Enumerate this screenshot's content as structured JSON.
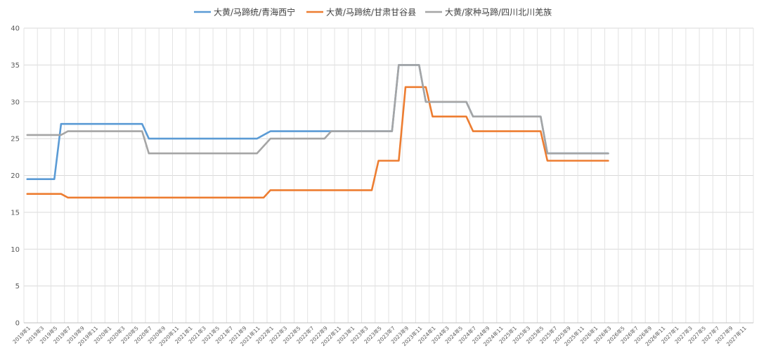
{
  "chart_data": {
    "type": "line",
    "title": "",
    "xlabel": "",
    "ylabel": "",
    "ylim": [
      0,
      40
    ],
    "yticks": [
      "0",
      "5",
      "10",
      "15",
      "20",
      "25",
      "30",
      "35",
      "40"
    ],
    "grid": true,
    "legend_position": "top-center",
    "categories": [
      "2019年1",
      "2019年3",
      "2019年5",
      "2019年7",
      "2019年9",
      "2019年11",
      "2020年1",
      "2020年3",
      "2020年5",
      "2020年7",
      "2020年9",
      "2020年11",
      "2021年1",
      "2021年3",
      "2021年5",
      "2021年7",
      "2021年9",
      "2021年11",
      "2022年1",
      "2022年3",
      "2022年5",
      "2022年7",
      "2022年9",
      "2022年11",
      "2023年1",
      "2023年3",
      "2023年5",
      "2023年7",
      "2023年9",
      "2023年11",
      "2024年1",
      "2024年3",
      "2024年5",
      "2024年7",
      "2024年9",
      "2024年11",
      "2025年1",
      "2025年3",
      "2025年5",
      "2025年7",
      "2025年9",
      "2025年11",
      "2026年1",
      "2026年3",
      "2026年5",
      "2026年7",
      "2026年9",
      "2026年11",
      "2027年1",
      "2027年3",
      "2027年5",
      "2027年7",
      "2027年9",
      "2027年11"
    ],
    "series": [
      {
        "name": "大黄/马蹄统/青海西宁",
        "color": "#5B9BD5",
        "points": [
          [
            "2019-01",
            19.5
          ],
          [
            "2019-05",
            19.5
          ],
          [
            "2019-06",
            27
          ],
          [
            "2020-06",
            27
          ],
          [
            "2020-07",
            25
          ],
          [
            "2021-11",
            25
          ],
          [
            "2022-01",
            26
          ],
          [
            "2023-07",
            26
          ],
          [
            "2023-08",
            35
          ],
          [
            "2023-11",
            35
          ],
          [
            "2023-12",
            30
          ],
          [
            "2024-06",
            30
          ],
          [
            "2024-07",
            28
          ],
          [
            "2025-05",
            28
          ],
          [
            "2025-06",
            23
          ],
          [
            "2026-03",
            23
          ]
        ]
      },
      {
        "name": "大黄/马蹄统/甘肃甘谷县",
        "color": "#ED7D31",
        "points": [
          [
            "2019-01",
            17.5
          ],
          [
            "2019-06",
            17.5
          ],
          [
            "2019-07",
            17
          ],
          [
            "2021-12",
            17
          ],
          [
            "2022-01",
            18
          ],
          [
            "2023-04",
            18
          ],
          [
            "2023-05",
            22
          ],
          [
            "2023-08",
            22
          ],
          [
            "2023-09",
            32
          ],
          [
            "2023-12",
            32
          ],
          [
            "2024-01",
            28
          ],
          [
            "2024-06",
            28
          ],
          [
            "2024-07",
            26
          ],
          [
            "2025-05",
            26
          ],
          [
            "2025-06",
            22
          ],
          [
            "2026-03",
            22
          ]
        ]
      },
      {
        "name": "大黄/家种马蹄/四川北川羌族",
        "color": "#A5A5A5",
        "points": [
          [
            "2019-01",
            25.5
          ],
          [
            "2019-06",
            25.5
          ],
          [
            "2019-07",
            26
          ],
          [
            "2020-06",
            26
          ],
          [
            "2020-07",
            23
          ],
          [
            "2021-11",
            23
          ],
          [
            "2022-01",
            25
          ],
          [
            "2022-09",
            25
          ],
          [
            "2022-10",
            26
          ],
          [
            "2023-07",
            26
          ],
          [
            "2023-08",
            35
          ],
          [
            "2023-11",
            35
          ],
          [
            "2023-12",
            30
          ],
          [
            "2024-06",
            30
          ],
          [
            "2024-07",
            28
          ],
          [
            "2025-05",
            28
          ],
          [
            "2025-06",
            23
          ],
          [
            "2026-03",
            23
          ]
        ]
      }
    ]
  }
}
